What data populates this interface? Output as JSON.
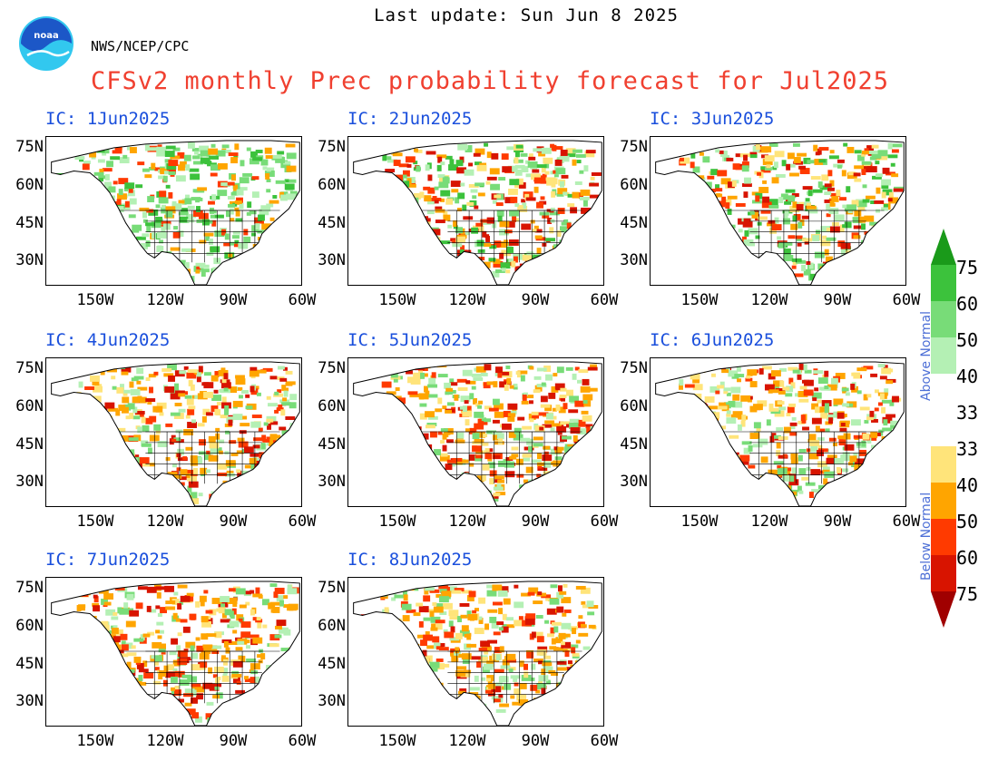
{
  "header": {
    "last_update": "Last update: Sun Jun 8 2025",
    "org": "NWS/NCEP/CPC",
    "title": "CFSv2 monthly Prec probability forecast for Jul2025"
  },
  "maps": [
    {
      "ic": "IC: 1Jun2025",
      "tint": "green"
    },
    {
      "ic": "IC: 2Jun2025",
      "tint": "mixed"
    },
    {
      "ic": "IC: 3Jun2025",
      "tint": "mixed"
    },
    {
      "ic": "IC: 4Jun2025",
      "tint": "orange"
    },
    {
      "ic": "IC: 5Jun2025",
      "tint": "orange"
    },
    {
      "ic": "IC: 6Jun2025",
      "tint": "orange"
    },
    {
      "ic": "IC: 7Jun2025",
      "tint": "orange"
    },
    {
      "ic": "IC: 8Jun2025",
      "tint": "orange"
    }
  ],
  "axes": {
    "lat_ticks": [
      "75N",
      "60N",
      "45N",
      "30N"
    ],
    "lon_ticks": [
      "150W",
      "120W",
      "90W",
      "60W"
    ]
  },
  "legend": {
    "above_label": "Above Normal",
    "below_label": "Below Normal",
    "above": [
      {
        "label": "75",
        "color": "#1a9a1a"
      },
      {
        "label": "60",
        "color": "#3cc23c"
      },
      {
        "label": "50",
        "color": "#78dc78"
      },
      {
        "label": "40",
        "color": "#b4f0b4"
      },
      {
        "label": "33",
        "color": "#ffffff"
      }
    ],
    "below": [
      {
        "label": "33",
        "color": "#ffe47a"
      },
      {
        "label": "40",
        "color": "#ffa500"
      },
      {
        "label": "50",
        "color": "#ff3a00"
      },
      {
        "label": "60",
        "color": "#d81400"
      },
      {
        "label": "75",
        "color": "#a00000"
      }
    ]
  },
  "colors": {
    "title": "#f04030",
    "ic_label": "#1a4fdc",
    "noaa_blue": "#1c57c7",
    "noaa_cyan": "#32c8ef"
  }
}
